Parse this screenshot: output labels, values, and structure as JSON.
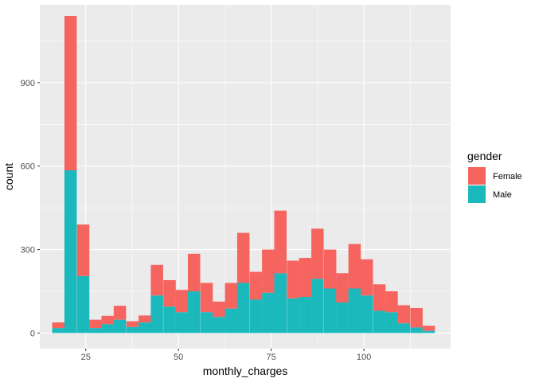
{
  "chart_data": {
    "type": "bar",
    "stacked": true,
    "xlabel": "monthly_charges",
    "ylabel": "count",
    "xlim": [
      12.6,
      123.4
    ],
    "ylim": [
      -56,
      1180
    ],
    "x_ticks": [
      25,
      50,
      75,
      100
    ],
    "x_tick_labels": [
      "25",
      "50",
      "75",
      "100"
    ],
    "y_ticks": [
      0,
      300,
      600,
      900
    ],
    "y_tick_labels": [
      "0",
      "300",
      "600",
      "900"
    ],
    "grid": true,
    "legend": {
      "title": "gender",
      "placement": "right",
      "entries": [
        "Female",
        "Male"
      ]
    },
    "bin_width": 3.33,
    "bin_centers": [
      17.6,
      20.9,
      24.3,
      27.6,
      30.9,
      34.2,
      37.6,
      40.9,
      44.2,
      47.6,
      50.9,
      54.2,
      57.6,
      60.9,
      64.2,
      67.5,
      70.9,
      74.2,
      77.5,
      80.9,
      84.2,
      87.5,
      90.9,
      94.2,
      97.5,
      100.8,
      104.2,
      107.5,
      110.8,
      114.2,
      117.5
    ],
    "series": [
      {
        "name": "Male",
        "color": "#1BB9BC",
        "values": [
          18,
          585,
          205,
          18,
          32,
          48,
          22,
          38,
          135,
          95,
          75,
          150,
          75,
          58,
          88,
          180,
          120,
          145,
          215,
          125,
          130,
          195,
          160,
          110,
          160,
          135,
          80,
          75,
          35,
          20,
          8
        ]
      },
      {
        "name": "Female",
        "color": "#F5645F",
        "values": [
          20,
          555,
          185,
          30,
          30,
          50,
          20,
          25,
          110,
          95,
          80,
          135,
          105,
          55,
          92,
          180,
          100,
          155,
          225,
          135,
          140,
          180,
          140,
          105,
          160,
          130,
          95,
          75,
          65,
          70,
          18
        ]
      }
    ]
  }
}
